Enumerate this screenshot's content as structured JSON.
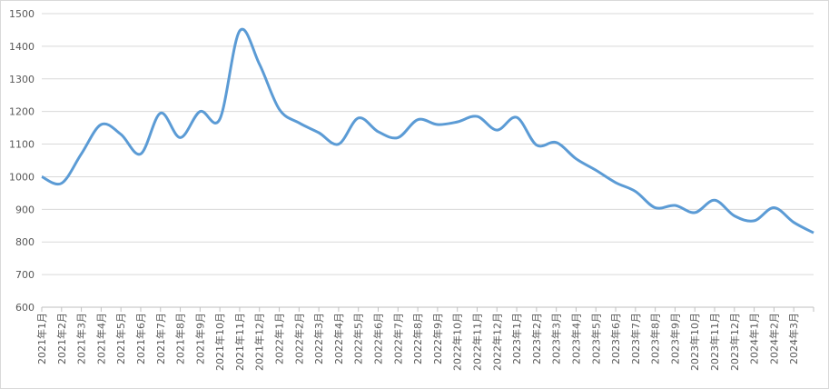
{
  "chart_data": {
    "type": "line",
    "categories": [
      "2021年1月",
      "2021年2月",
      "2021年3月",
      "2021年4月",
      "2021年5月",
      "2021年6月",
      "2021年7月",
      "2021年8月",
      "2021年9月",
      "2021年10月",
      "2021年11月",
      "2021年12月",
      "2022年1月",
      "2022年2月",
      "2022年3月",
      "2022年4月",
      "2022年5月",
      "2022年6月",
      "2022年7月",
      "2022年8月",
      "2022年9月",
      "2022年10月",
      "2022年11月",
      "2022年12月",
      "2023年1月",
      "2023年2月",
      "2023年3月",
      "2023年4月",
      "2023年5月",
      "2023年6月",
      "2023年7月",
      "2023年8月",
      "2023年9月",
      "2023年10月",
      "2023年11月",
      "2023年12月",
      "2024年1月",
      "2024年2月",
      "2024年3月",
      null
    ],
    "values": [
      1000,
      980,
      1070,
      1160,
      1130,
      1070,
      1195,
      1120,
      1200,
      1177,
      1447,
      1345,
      1207,
      1165,
      1135,
      1100,
      1180,
      1138,
      1120,
      1175,
      1160,
      1168,
      1185,
      1143,
      1182,
      1097,
      1105,
      1055,
      1020,
      982,
      955,
      905,
      912,
      890,
      928,
      880,
      865,
      905,
      860,
      828
    ],
    "color": "#5b9bd5",
    "ylim": [
      600,
      1500
    ],
    "yticks": [
      600,
      700,
      800,
      900,
      1000,
      1100,
      1200,
      1300,
      1400,
      1500
    ],
    "grid": true
  }
}
